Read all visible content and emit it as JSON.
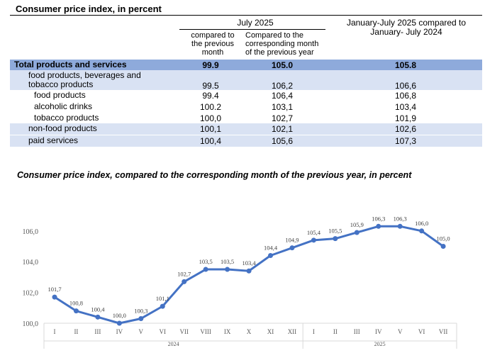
{
  "table": {
    "title": "Consumer price index, in percent",
    "group_header": "July 2025",
    "col1": "compared to the previous month",
    "col2": "Compared to the corresponding month of the previous year",
    "col3": "January-July 2025 compared to January- July 2024",
    "rows": [
      {
        "label": "Total products and services",
        "v1": "99.9",
        "v2": "105.0",
        "v3": "105.8"
      },
      {
        "label": "food products, beverages and tobacco products",
        "v1": "99.5",
        "v2": "106,2",
        "v3": "106,6"
      },
      {
        "label": "food products",
        "v1": "99.4",
        "v2": "106,4",
        "v3": "106,8"
      },
      {
        "label": "alcoholic drinks",
        "v1": "100.2",
        "v2": "103,1",
        "v3": "103,4"
      },
      {
        "label": "tobacco products",
        "v1": "100,0",
        "v2": "102,7",
        "v3": "101,9"
      },
      {
        "label": "non-food products",
        "v1": "100,1",
        "v2": "102,1",
        "v3": "102,6"
      },
      {
        "label": "paid services",
        "v1": "100,4",
        "v2": "105,6",
        "v3": "107,3"
      }
    ]
  },
  "chart_data": {
    "type": "line",
    "title": "Consumer price index, compared to the corresponding month of the previous year, in percent",
    "categories": [
      "I",
      "II",
      "III",
      "IV",
      "V",
      "VI",
      "VII",
      "VIII",
      "IX",
      "X",
      "XI",
      "XII",
      "I",
      "II",
      "III",
      "IV",
      "V",
      "VI",
      "VII"
    ],
    "groups": [
      {
        "label": "2024",
        "count": 12
      },
      {
        "label": "2025",
        "count": 7
      }
    ],
    "values": [
      101.7,
      100.8,
      100.4,
      100.0,
      100.3,
      101.1,
      102.7,
      103.5,
      103.5,
      103.4,
      104.4,
      104.9,
      105.4,
      105.5,
      105.9,
      106.3,
      106.3,
      106.0,
      105.0
    ],
    "data_labels": [
      "101,7",
      "100,8",
      "100,4",
      "100,0",
      "100,3",
      "101,1",
      "102,7",
      "103,5",
      "103,5",
      "103,4",
      "104,4",
      "104,9",
      "105,4",
      "105,5",
      "105,9",
      "106,3",
      "106,3",
      "106,0",
      "105,0"
    ],
    "yticks": [
      "100,0",
      "102,0",
      "104,0",
      "106,0"
    ],
    "ylim": [
      100,
      106
    ],
    "grid": false,
    "color": "#4472c4"
  },
  "colors": {
    "total_row": "#8eaadb",
    "band_row": "#d9e2f3"
  }
}
